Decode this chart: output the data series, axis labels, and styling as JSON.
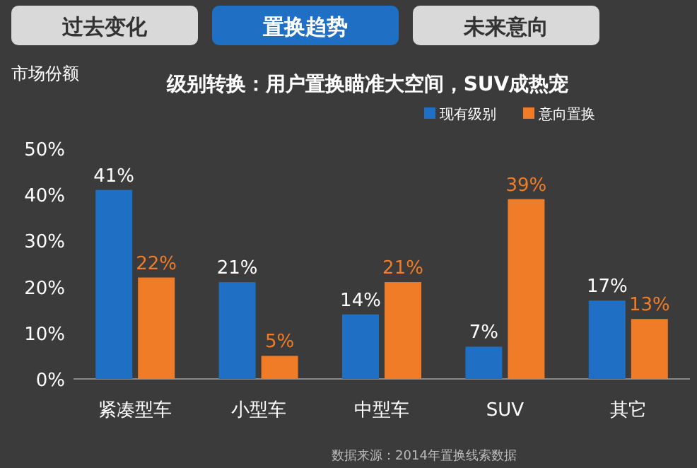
{
  "chart_data": {
    "type": "bar",
    "title": "级别转换：用户置换瞄准大空间，SUV成热宠",
    "ylabel": "市场份额",
    "categories": [
      "紧凑型车",
      "小型车",
      "中型车",
      "SUV",
      "其它"
    ],
    "series": [
      {
        "name": "现有级别",
        "color": "#1f6fc4",
        "values": [
          41,
          21,
          14,
          7,
          17
        ],
        "value_labels": [
          "41%",
          "21%",
          "14%",
          "7%",
          "17%"
        ]
      },
      {
        "name": "意向置换",
        "color": "#f07c28",
        "values": [
          22,
          5,
          21,
          39,
          13
        ],
        "value_labels": [
          "22%",
          "5%",
          "21%",
          "39%",
          "13%"
        ]
      }
    ],
    "ylim": [
      0,
      50
    ],
    "yticks": [
      {
        "value": 0,
        "label": "0%"
      },
      {
        "value": 10,
        "label": "10%"
      },
      {
        "value": 20,
        "label": "20%"
      },
      {
        "value": 30,
        "label": "30%"
      },
      {
        "value": 40,
        "label": "40%"
      },
      {
        "value": 50,
        "label": "50%"
      }
    ],
    "legend": "top",
    "annotations": [
      "过去变化",
      "置换趋势",
      "未来意向",
      "数据来源：2014年置换线索数据"
    ]
  }
}
